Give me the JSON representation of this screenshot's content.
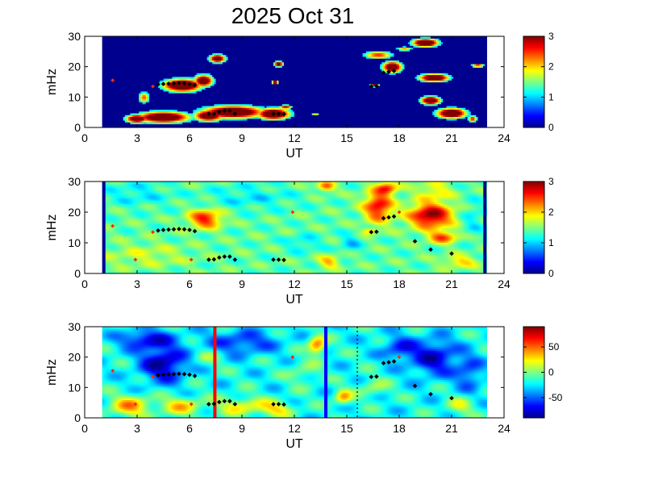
{
  "title": "2025 Oct 31",
  "colors": {
    "background": "#ffffff",
    "panel_blue": "#00008f",
    "axis": "#000000",
    "marker_red": "#ff2a00",
    "marker_black": "#000000",
    "vline_red": "#ff0000",
    "vline_blue": "#0000ff"
  },
  "chart_data": [
    {
      "type": "heatmap",
      "panel": 1,
      "xlabel": "UT",
      "ylabel": "mHz",
      "xlim": [
        0,
        24
      ],
      "ylim": [
        0,
        30
      ],
      "xticks": [
        0,
        3,
        6,
        9,
        12,
        15,
        18,
        21,
        24
      ],
      "yticks": [
        0,
        10,
        20,
        30
      ],
      "data_range_ut": [
        1.0,
        23.0
      ],
      "colorbar": {
        "range": [
          0,
          3
        ],
        "ticks": [
          "0",
          "1",
          "2",
          "3"
        ],
        "colormap": "jet"
      },
      "background_value": 0,
      "blobs": [
        {
          "x": 4.5,
          "y": 3.5,
          "rx": 1.6,
          "ry": 2.0,
          "v": 3.0
        },
        {
          "x": 3.0,
          "y": 3.0,
          "rx": 0.7,
          "ry": 1.5,
          "v": 2.8
        },
        {
          "x": 5.6,
          "y": 14.0,
          "rx": 1.2,
          "ry": 2.3,
          "v": 3.0
        },
        {
          "x": 6.8,
          "y": 15.5,
          "rx": 0.6,
          "ry": 2.2,
          "v": 2.7
        },
        {
          "x": 8.5,
          "y": 5.2,
          "rx": 1.9,
          "ry": 2.2,
          "v": 3.0
        },
        {
          "x": 10.8,
          "y": 4.6,
          "rx": 1.0,
          "ry": 2.0,
          "v": 3.0
        },
        {
          "x": 7.1,
          "y": 4.0,
          "rx": 0.9,
          "ry": 2.0,
          "v": 2.8
        },
        {
          "x": 3.4,
          "y": 10.0,
          "rx": 0.35,
          "ry": 2.0,
          "v": 1.8
        },
        {
          "x": 7.6,
          "y": 22.8,
          "rx": 0.5,
          "ry": 1.5,
          "v": 2.7
        },
        {
          "x": 11.5,
          "y": 6.8,
          "rx": 0.4,
          "ry": 0.8,
          "v": 2.2
        },
        {
          "x": 10.9,
          "y": 15.0,
          "rx": 0.2,
          "ry": 0.8,
          "v": 2.6
        },
        {
          "x": 11.1,
          "y": 21.0,
          "rx": 0.3,
          "ry": 1.0,
          "v": 2.5
        },
        {
          "x": 16.8,
          "y": 24.0,
          "rx": 0.9,
          "ry": 1.5,
          "v": 1.9
        },
        {
          "x": 17.6,
          "y": 20.0,
          "rx": 0.6,
          "ry": 2.0,
          "v": 2.8
        },
        {
          "x": 16.6,
          "y": 14.0,
          "rx": 0.3,
          "ry": 0.5,
          "v": 2.3
        },
        {
          "x": 19.5,
          "y": 28.0,
          "rx": 0.8,
          "ry": 1.5,
          "v": 3.0
        },
        {
          "x": 20.0,
          "y": 16.5,
          "rx": 0.9,
          "ry": 1.4,
          "v": 3.0
        },
        {
          "x": 19.8,
          "y": 9.0,
          "rx": 0.6,
          "ry": 1.5,
          "v": 2.9
        },
        {
          "x": 21.0,
          "y": 4.8,
          "rx": 0.9,
          "ry": 1.8,
          "v": 3.0
        },
        {
          "x": 22.2,
          "y": 3.0,
          "rx": 0.3,
          "ry": 1.2,
          "v": 2.0
        },
        {
          "x": 14.2,
          "y": 9.0,
          "rx": 0.4,
          "ry": 0.3,
          "v": 1.8
        },
        {
          "x": 13.2,
          "y": 4.5,
          "rx": 0.3,
          "ry": 0.5,
          "v": 1.4
        },
        {
          "x": 22.5,
          "y": 20.5,
          "rx": 0.4,
          "ry": 0.7,
          "v": 2.0
        },
        {
          "x": 18.3,
          "y": 26.0,
          "rx": 0.5,
          "ry": 0.8,
          "v": 1.6
        }
      ],
      "threshold": 0.7,
      "markers": [
        {
          "x": 1.6,
          "y": 15.5,
          "color": "red"
        },
        {
          "x": 3.9,
          "y": 13.5,
          "color": "red"
        },
        {
          "x": 4.2,
          "y": 14.2,
          "color": "black"
        },
        {
          "x": 4.5,
          "y": 14.3,
          "color": "black"
        },
        {
          "x": 4.8,
          "y": 14.4,
          "color": "black"
        },
        {
          "x": 5.1,
          "y": 14.5,
          "color": "black"
        },
        {
          "x": 5.4,
          "y": 14.6,
          "color": "black"
        },
        {
          "x": 5.7,
          "y": 14.5,
          "color": "black"
        },
        {
          "x": 6.0,
          "y": 14.3,
          "color": "black"
        },
        {
          "x": 6.3,
          "y": 14.0,
          "color": "black"
        },
        {
          "x": 7.1,
          "y": 4.5,
          "color": "black"
        },
        {
          "x": 7.4,
          "y": 4.5,
          "color": "black"
        },
        {
          "x": 7.7,
          "y": 5.2,
          "color": "black"
        },
        {
          "x": 8.0,
          "y": 5.5,
          "color": "black"
        },
        {
          "x": 8.3,
          "y": 5.5,
          "color": "black"
        },
        {
          "x": 8.6,
          "y": 4.5,
          "color": "black"
        },
        {
          "x": 10.8,
          "y": 4.5,
          "color": "black"
        },
        {
          "x": 11.1,
          "y": 4.5,
          "color": "black"
        },
        {
          "x": 11.4,
          "y": 4.4,
          "color": "black"
        },
        {
          "x": 16.4,
          "y": 13.5,
          "color": "black"
        },
        {
          "x": 16.7,
          "y": 13.6,
          "color": "black"
        },
        {
          "x": 17.1,
          "y": 18.0,
          "color": "black"
        },
        {
          "x": 17.4,
          "y": 18.3,
          "color": "black"
        },
        {
          "x": 17.7,
          "y": 18.6,
          "color": "black"
        }
      ]
    },
    {
      "type": "heatmap",
      "panel": 2,
      "xlabel": "UT",
      "ylabel": "mHz",
      "xlim": [
        0,
        24
      ],
      "ylim": [
        0,
        30
      ],
      "xticks": [
        0,
        3,
        6,
        9,
        12,
        15,
        18,
        21,
        24
      ],
      "yticks": [
        0,
        10,
        20,
        30
      ],
      "data_range_ut": [
        1.0,
        23.0
      ],
      "colorbar": {
        "range": [
          0,
          3
        ],
        "ticks": [
          "0",
          "1",
          "2",
          "3"
        ],
        "colormap": "jet"
      },
      "background_value": 1.4,
      "blobs": [
        {
          "x": 6.9,
          "y": 18.0,
          "rx": 0.9,
          "ry": 3.0,
          "v": 1.2
        },
        {
          "x": 3.5,
          "y": 6.0,
          "rx": 2.5,
          "ry": 4.0,
          "v": 0.3
        },
        {
          "x": 3.0,
          "y": 26.0,
          "rx": 2.0,
          "ry": 4.0,
          "v": -0.3
        },
        {
          "x": 9.5,
          "y": 25.0,
          "rx": 2.5,
          "ry": 4.0,
          "v": -0.3
        },
        {
          "x": 13.8,
          "y": 28.5,
          "rx": 0.5,
          "ry": 1.5,
          "v": 1.0
        },
        {
          "x": 14.0,
          "y": 4.0,
          "rx": 0.6,
          "ry": 2.0,
          "v": 0.7
        },
        {
          "x": 16.8,
          "y": 22.0,
          "rx": 0.8,
          "ry": 5.0,
          "v": 1.3
        },
        {
          "x": 17.3,
          "y": 28.0,
          "rx": 0.6,
          "ry": 2.0,
          "v": 1.0
        },
        {
          "x": 16.3,
          "y": 14.0,
          "rx": 0.4,
          "ry": 1.0,
          "v": 0.6
        },
        {
          "x": 19.8,
          "y": 19.0,
          "rx": 1.2,
          "ry": 4.0,
          "v": 1.6
        },
        {
          "x": 20.5,
          "y": 12.0,
          "rx": 0.8,
          "ry": 2.0,
          "v": 1.0
        },
        {
          "x": 20.0,
          "y": 27.0,
          "rx": 1.0,
          "ry": 3.0,
          "v": 0.5
        },
        {
          "x": 21.5,
          "y": 4.0,
          "rx": 1.0,
          "ry": 2.0,
          "v": 0.6
        },
        {
          "x": 12.5,
          "y": 10.0,
          "rx": 1.0,
          "ry": 3.0,
          "v": -0.3
        },
        {
          "x": 15.2,
          "y": 10.0,
          "rx": 0.6,
          "ry": 3.0,
          "v": -0.4
        },
        {
          "x": 22.2,
          "y": 18.0,
          "rx": 0.6,
          "ry": 6.0,
          "v": -0.3
        }
      ],
      "edge_bars_ut": [
        1.0,
        23.0
      ],
      "markers": [
        {
          "x": 1.6,
          "y": 15.5,
          "color": "red"
        },
        {
          "x": 2.9,
          "y": 4.5,
          "color": "red"
        },
        {
          "x": 3.9,
          "y": 13.5,
          "color": "red"
        },
        {
          "x": 4.2,
          "y": 14.0,
          "color": "black"
        },
        {
          "x": 4.5,
          "y": 14.2,
          "color": "black"
        },
        {
          "x": 4.8,
          "y": 14.3,
          "color": "black"
        },
        {
          "x": 5.1,
          "y": 14.4,
          "color": "black"
        },
        {
          "x": 5.4,
          "y": 14.5,
          "color": "black"
        },
        {
          "x": 5.7,
          "y": 14.4,
          "color": "black"
        },
        {
          "x": 6.0,
          "y": 14.2,
          "color": "black"
        },
        {
          "x": 6.3,
          "y": 13.8,
          "color": "black"
        },
        {
          "x": 6.1,
          "y": 4.5,
          "color": "red"
        },
        {
          "x": 7.1,
          "y": 4.5,
          "color": "black"
        },
        {
          "x": 7.4,
          "y": 4.6,
          "color": "black"
        },
        {
          "x": 7.7,
          "y": 5.2,
          "color": "black"
        },
        {
          "x": 8.0,
          "y": 5.5,
          "color": "black"
        },
        {
          "x": 8.3,
          "y": 5.5,
          "color": "black"
        },
        {
          "x": 8.6,
          "y": 4.5,
          "color": "black"
        },
        {
          "x": 10.8,
          "y": 4.5,
          "color": "black"
        },
        {
          "x": 11.1,
          "y": 4.5,
          "color": "black"
        },
        {
          "x": 11.4,
          "y": 4.4,
          "color": "black"
        },
        {
          "x": 11.9,
          "y": 20.0,
          "color": "red"
        },
        {
          "x": 16.4,
          "y": 13.5,
          "color": "black"
        },
        {
          "x": 16.7,
          "y": 13.6,
          "color": "black"
        },
        {
          "x": 17.1,
          "y": 18.0,
          "color": "black"
        },
        {
          "x": 17.4,
          "y": 18.3,
          "color": "black"
        },
        {
          "x": 17.7,
          "y": 18.6,
          "color": "black"
        },
        {
          "x": 18.0,
          "y": 20.0,
          "color": "red"
        },
        {
          "x": 18.9,
          "y": 10.5,
          "color": "black"
        },
        {
          "x": 19.8,
          "y": 7.8,
          "color": "black"
        },
        {
          "x": 21.0,
          "y": 6.5,
          "color": "black"
        }
      ]
    },
    {
      "type": "heatmap",
      "panel": 3,
      "xlabel": "UT",
      "ylabel": "mHz",
      "xlim": [
        0,
        24
      ],
      "ylim": [
        0,
        30
      ],
      "xticks": [
        0,
        3,
        6,
        9,
        12,
        15,
        18,
        21,
        24
      ],
      "yticks": [
        0,
        10,
        20,
        30
      ],
      "data_range_ut": [
        1.0,
        23.0
      ],
      "colorbar": {
        "range": [
          -90,
          90
        ],
        "ticks": [
          "50",
          "0",
          "-50"
        ],
        "tick_values": [
          50,
          0,
          -50
        ],
        "colormap": "jet"
      },
      "background_value": -20,
      "blobs": [
        {
          "x": 2.6,
          "y": 4.0,
          "rx": 1.2,
          "ry": 3.5,
          "v": 55
        },
        {
          "x": 5.5,
          "y": 4.0,
          "rx": 1.2,
          "ry": 3.0,
          "v": 45
        },
        {
          "x": 9.0,
          "y": 4.0,
          "rx": 1.5,
          "ry": 3.0,
          "v": 40
        },
        {
          "x": 11.0,
          "y": 3.0,
          "rx": 1.0,
          "ry": 2.5,
          "v": 40
        },
        {
          "x": 4.5,
          "y": 18.0,
          "rx": 1.3,
          "ry": 6.0,
          "v": -65
        },
        {
          "x": 3.5,
          "y": 26.0,
          "rx": 1.5,
          "ry": 3.0,
          "v": -50
        },
        {
          "x": 9.0,
          "y": 25.0,
          "rx": 2.0,
          "ry": 4.0,
          "v": -40
        },
        {
          "x": 13.3,
          "y": 24.0,
          "rx": 0.5,
          "ry": 3.0,
          "v": 70
        },
        {
          "x": 14.8,
          "y": 7.0,
          "rx": 0.5,
          "ry": 2.5,
          "v": 55
        },
        {
          "x": 12.5,
          "y": 15.0,
          "rx": 0.9,
          "ry": 4.0,
          "v": 20
        },
        {
          "x": 20.0,
          "y": 20.0,
          "rx": 1.3,
          "ry": 6.0,
          "v": -55
        },
        {
          "x": 18.0,
          "y": 23.0,
          "rx": 1.0,
          "ry": 4.0,
          "v": -40
        },
        {
          "x": 22.0,
          "y": 15.0,
          "rx": 0.8,
          "ry": 6.0,
          "v": -35
        },
        {
          "x": 21.5,
          "y": 4.0,
          "rx": 0.8,
          "ry": 3.0,
          "v": 30
        },
        {
          "x": 7.0,
          "y": 20.0,
          "rx": 0.8,
          "ry": 3.0,
          "v": 20
        },
        {
          "x": 16.5,
          "y": 10.0,
          "rx": 0.8,
          "ry": 3.0,
          "v": 25
        }
      ],
      "vertical_lines": [
        {
          "ut": 7.45,
          "color": "red"
        },
        {
          "ut": 13.8,
          "color": "blue"
        }
      ],
      "dotted_line_ut": 15.6,
      "markers": [
        {
          "x": 1.6,
          "y": 15.5,
          "color": "red"
        },
        {
          "x": 2.9,
          "y": 4.5,
          "color": "red"
        },
        {
          "x": 3.9,
          "y": 13.5,
          "color": "red"
        },
        {
          "x": 4.2,
          "y": 14.0,
          "color": "black"
        },
        {
          "x": 4.5,
          "y": 14.2,
          "color": "black"
        },
        {
          "x": 4.8,
          "y": 14.3,
          "color": "black"
        },
        {
          "x": 5.1,
          "y": 14.4,
          "color": "black"
        },
        {
          "x": 5.4,
          "y": 14.5,
          "color": "black"
        },
        {
          "x": 5.7,
          "y": 14.4,
          "color": "black"
        },
        {
          "x": 6.0,
          "y": 14.2,
          "color": "black"
        },
        {
          "x": 6.3,
          "y": 13.8,
          "color": "black"
        },
        {
          "x": 6.1,
          "y": 4.5,
          "color": "red"
        },
        {
          "x": 7.1,
          "y": 4.5,
          "color": "black"
        },
        {
          "x": 7.4,
          "y": 4.6,
          "color": "black"
        },
        {
          "x": 7.7,
          "y": 5.2,
          "color": "black"
        },
        {
          "x": 8.0,
          "y": 5.5,
          "color": "black"
        },
        {
          "x": 8.3,
          "y": 5.5,
          "color": "black"
        },
        {
          "x": 8.6,
          "y": 4.5,
          "color": "black"
        },
        {
          "x": 10.8,
          "y": 4.5,
          "color": "black"
        },
        {
          "x": 11.1,
          "y": 4.5,
          "color": "black"
        },
        {
          "x": 11.4,
          "y": 4.4,
          "color": "black"
        },
        {
          "x": 11.9,
          "y": 20.0,
          "color": "red"
        },
        {
          "x": 16.4,
          "y": 13.5,
          "color": "black"
        },
        {
          "x": 16.7,
          "y": 13.6,
          "color": "black"
        },
        {
          "x": 17.1,
          "y": 18.0,
          "color": "black"
        },
        {
          "x": 17.4,
          "y": 18.3,
          "color": "black"
        },
        {
          "x": 17.7,
          "y": 18.6,
          "color": "black"
        },
        {
          "x": 18.0,
          "y": 20.0,
          "color": "red"
        },
        {
          "x": 18.9,
          "y": 10.5,
          "color": "black"
        },
        {
          "x": 19.8,
          "y": 7.8,
          "color": "black"
        },
        {
          "x": 21.0,
          "y": 6.5,
          "color": "black"
        }
      ]
    }
  ]
}
